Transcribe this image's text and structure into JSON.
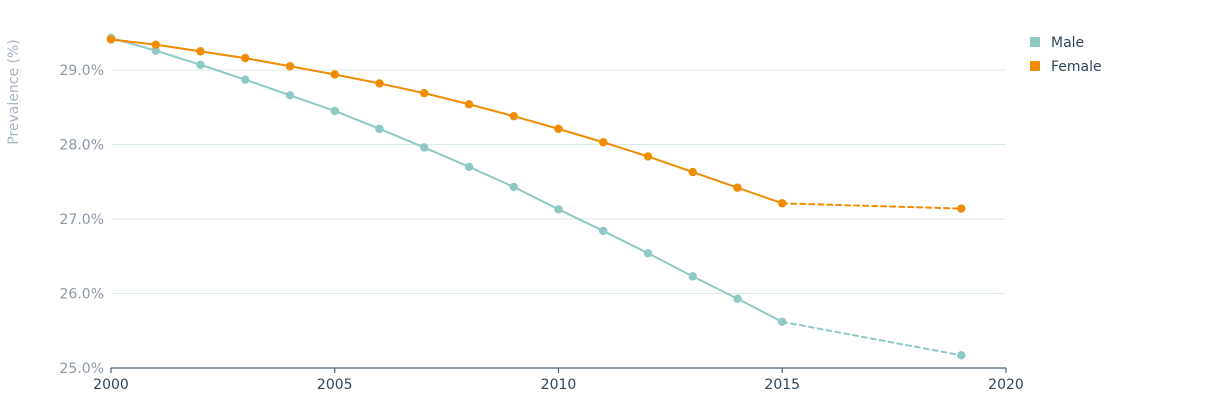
{
  "chart_data": {
    "type": "line",
    "title": "",
    "xlabel": "",
    "ylabel": "Prevalence (%)",
    "xlim": [
      2000,
      2020
    ],
    "ylim": [
      25.0,
      29.0
    ],
    "x_ticks": [
      2000,
      2005,
      2010,
      2015,
      2020
    ],
    "y_ticks": [
      25.0,
      26.0,
      27.0,
      28.0,
      29.0
    ],
    "y_tick_labels": [
      "25.0%",
      "26.0%",
      "27.0%",
      "28.0%",
      "29.0%"
    ],
    "grid": "horizontal",
    "legend_position": "top-right",
    "series": [
      {
        "name": "Male",
        "color": "#8ec9c6",
        "x": [
          2000,
          2001,
          2002,
          2003,
          2004,
          2005,
          2006,
          2007,
          2008,
          2009,
          2010,
          2011,
          2012,
          2013,
          2014,
          2015
        ],
        "values": [
          29.43,
          29.26,
          29.07,
          28.87,
          28.66,
          28.45,
          28.21,
          27.96,
          27.7,
          27.43,
          27.13,
          26.84,
          26.54,
          26.23,
          25.93,
          25.62
        ],
        "projection": {
          "x": [
            2015,
            2019
          ],
          "values": [
            25.62,
            25.17
          ]
        }
      },
      {
        "name": "Female",
        "color": "#f08c00",
        "x": [
          2000,
          2001,
          2002,
          2003,
          2004,
          2005,
          2006,
          2007,
          2008,
          2009,
          2010,
          2011,
          2012,
          2013,
          2014,
          2015
        ],
        "values": [
          29.41,
          29.34,
          29.25,
          29.16,
          29.05,
          28.94,
          28.82,
          28.69,
          28.54,
          28.38,
          28.21,
          28.03,
          27.84,
          27.63,
          27.42,
          27.21
        ],
        "projection": {
          "x": [
            2015,
            2019
          ],
          "values": [
            27.21,
            27.14
          ]
        }
      }
    ]
  }
}
